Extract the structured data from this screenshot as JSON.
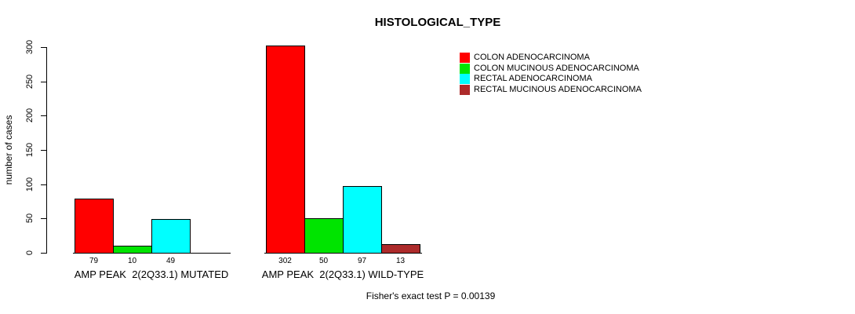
{
  "title": "HISTOLOGICAL_TYPE",
  "chart_data": {
    "type": "bar",
    "title": "HISTOLOGICAL_TYPE",
    "xlabel": "",
    "ylabel": "number of cases",
    "ylim": [
      0,
      300
    ],
    "y_ticks": [
      0,
      50,
      100,
      150,
      200,
      250,
      300
    ],
    "grid": false,
    "legend_position": "top-right",
    "categories": [
      "AMP PEAK  2(2Q33.1) MUTATED",
      "AMP PEAK  2(2Q33.1) WILD-TYPE"
    ],
    "series": [
      {
        "name": "COLON ADENOCARCINOMA",
        "color": "#FF0000",
        "values": [
          79,
          302
        ]
      },
      {
        "name": "COLON MUCINOUS ADENOCARCINOMA",
        "color": "#00E400",
        "values": [
          10,
          50
        ]
      },
      {
        "name": "RECTAL ADENOCARCINOMA",
        "color": "#00FFFF",
        "values": [
          49,
          97
        ]
      },
      {
        "name": "RECTAL MUCINOUS ADENOCARCINOMA",
        "color": "#AD2B2B",
        "values": [
          0,
          13
        ]
      }
    ],
    "bar_value_label_rule": "value shown under each bar; zero-height bars show no bar and no label",
    "annotation": "Fisher's exact test P = 0.00139"
  }
}
